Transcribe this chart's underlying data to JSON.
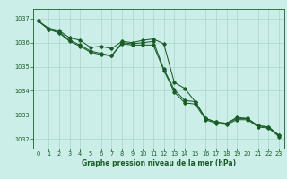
{
  "title": "Graphe pression niveau de la mer (hPa)",
  "background_color": "#cceee8",
  "plot_background": "#cceee8",
  "grid_color": "#aad4cc",
  "line_color": "#1a5c28",
  "marker_color": "#1a5c28",
  "tick_color": "#1a5c28",
  "spine_color": "#1a5c28",
  "x_ticks": [
    0,
    1,
    2,
    3,
    4,
    5,
    6,
    7,
    8,
    9,
    10,
    11,
    12,
    13,
    14,
    15,
    16,
    17,
    18,
    19,
    20,
    21,
    22,
    23
  ],
  "ylim": [
    1031.6,
    1037.4
  ],
  "yticks": [
    1032,
    1033,
    1034,
    1035,
    1036,
    1037
  ],
  "line1": [
    1036.9,
    1036.6,
    1036.5,
    1036.2,
    1036.1,
    1035.8,
    1035.85,
    1035.75,
    1036.05,
    1036.0,
    1036.1,
    1036.15,
    1035.95,
    1034.35,
    1034.1,
    1033.55,
    1032.85,
    1032.7,
    1032.65,
    1032.9,
    1032.85,
    1032.55,
    1032.5,
    1032.15
  ],
  "line2": [
    1036.9,
    1036.55,
    1036.45,
    1036.1,
    1035.9,
    1035.65,
    1035.55,
    1035.45,
    1036.0,
    1035.95,
    1036.0,
    1036.05,
    1034.9,
    1034.05,
    1033.6,
    1033.55,
    1032.85,
    1032.7,
    1032.65,
    1032.85,
    1032.85,
    1032.55,
    1032.5,
    1032.15
  ],
  "line3": [
    1036.9,
    1036.55,
    1036.4,
    1036.05,
    1035.85,
    1035.6,
    1035.5,
    1035.45,
    1035.95,
    1035.9,
    1035.9,
    1035.9,
    1034.85,
    1033.95,
    1033.5,
    1033.45,
    1032.8,
    1032.65,
    1032.6,
    1032.8,
    1032.8,
    1032.5,
    1032.45,
    1032.1
  ],
  "title_fontsize": 5.5,
  "tick_fontsize": 4.8,
  "marker_size": 1.8,
  "line_width": 0.75
}
